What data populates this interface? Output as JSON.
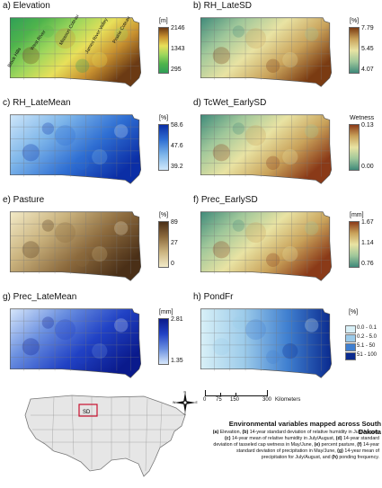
{
  "panels": [
    {
      "title": "a) Elevation",
      "unit": "[m]",
      "ticks": [
        "2146",
        "1343",
        "295"
      ],
      "colors": [
        "#6b3a14",
        "#c7902f",
        "#e8e05a",
        "#9cd65c",
        "#4fb44c",
        "#2f9f57"
      ],
      "map_labels": [
        "Black Hills",
        "West River",
        "Missouri Coteau",
        "James River Valley",
        "Prairie Coteau"
      ]
    },
    {
      "title": "b) RH_LateSD",
      "unit": "[%]",
      "ticks": [
        "7.79",
        "5.45",
        "4.07"
      ],
      "colors": [
        "#7a3b12",
        "#c9a25a",
        "#e9e3a3",
        "#9fc79a",
        "#3f8a7a"
      ]
    },
    {
      "title": "c) RH_LateMean",
      "unit": "[%]",
      "ticks": [
        "58.6",
        "47.6",
        "39.2"
      ],
      "colors": [
        "#0b2ea6",
        "#2f6fd3",
        "#7eb6ea",
        "#cfe7fa"
      ]
    },
    {
      "title": "d) TcWet_EarlySD",
      "unit": "Wetness",
      "ticks": [
        "0.13",
        "0.00"
      ],
      "colors": [
        "#8a3a18",
        "#c9a25a",
        "#e9e3a3",
        "#9fc79a",
        "#3f8a7a"
      ]
    },
    {
      "title": "e) Pasture",
      "unit": "[%]",
      "ticks": [
        "89",
        "27",
        "0"
      ],
      "colors": [
        "#4a2f17",
        "#8c6a3d",
        "#cbb47f",
        "#f3ebc8"
      ]
    },
    {
      "title": "f) Prec_EarlySD",
      "unit": "[mm]",
      "ticks": [
        "1.67",
        "1.14",
        "0.76"
      ],
      "colors": [
        "#8a3a18",
        "#c9a25a",
        "#e9e3a3",
        "#9fc79a",
        "#3f8a7a"
      ]
    },
    {
      "title": "g) Prec_LateMean",
      "unit": "[mm]",
      "ticks": [
        "2.81",
        "1.35"
      ],
      "colors": [
        "#0a1a8c",
        "#2142c5",
        "#6a8fe0",
        "#d7e7fb"
      ]
    },
    {
      "title": "h) PondFr",
      "unit": "[%]",
      "categories": [
        {
          "label": "0.0 - 0.1",
          "color": "#d8f0f7"
        },
        {
          "label": "0.2 - 5.0",
          "color": "#9ccbea"
        },
        {
          "label": "5.1 - 50",
          "color": "#3f7fd0"
        },
        {
          "label": "51 - 100",
          "color": "#0a2a8e"
        }
      ]
    }
  ],
  "scale_bar": {
    "ticks": [
      "0",
      "75",
      "150",
      "300"
    ],
    "unit": "Kilometers"
  },
  "compass": {
    "n": "N",
    "s": "S",
    "e": "E",
    "w": "W"
  },
  "inset": {
    "label": "SD",
    "highlight_color": "#c8102e"
  },
  "caption": {
    "title": "Environmental variables mapped across South Dakota",
    "body_parts": [
      {
        "b": "(a) ",
        "t": "Elevation, "
      },
      {
        "b": "(b) ",
        "t": "14-year standard deviation of relative humidity in July/August, "
      },
      {
        "b": "(c) ",
        "t": "14-year mean of relative humidity in July/August, "
      },
      {
        "b": "(d) ",
        "t": "14-year standard deviation of tasseled cap wetness in May/June, "
      },
      {
        "b": "(e) ",
        "t": "percent pasture, "
      },
      {
        "b": "(f) ",
        "t": "14-year standard deviation of precipitation in May/June, "
      },
      {
        "b": "(g) ",
        "t": "14-year mean of precipitation for July/August, and "
      },
      {
        "b": "(h) ",
        "t": "ponding frequency."
      }
    ]
  }
}
